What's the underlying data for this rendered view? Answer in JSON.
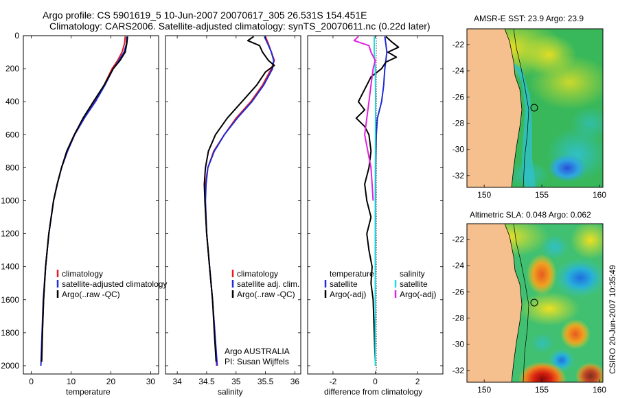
{
  "header": {
    "title_line1": "Argo profile: CS 5901619_5 10-Jun-2007 20070617_305 26.531S 154.451E",
    "title_line2": "Climatology: CARS2006. Satellite-adjusted climatology: synTS_20070611.nc (0.22d later)"
  },
  "credit": {
    "org_line1": "Argo AUSTRALIA",
    "org_line2": "PI: Susan Wijffels",
    "stamp": "CSIRO 20-Jun-2007 10:35:49"
  },
  "colors": {
    "climatology": "#e8191f",
    "satellite": "#1f2bd6",
    "argo": "#000000",
    "sat_salinity": "#22dddd",
    "argo_salinity": "#e020e0",
    "land": "#f5c08e"
  },
  "chart_data": [
    {
      "type": "line",
      "title": "",
      "xlabel": "temperature",
      "ylabel": "",
      "xlim": [
        -2,
        32
      ],
      "ylim": [
        2050,
        0
      ],
      "xticks": [
        0,
        10,
        20,
        30
      ],
      "yticks": [
        0,
        200,
        400,
        600,
        800,
        1000,
        1200,
        1400,
        1600,
        1800,
        2000
      ],
      "legend": [
        "climatology",
        "satellite-adjusted climatology",
        "Argo(..raw -QC)"
      ],
      "legend_position": "bottom-left",
      "series": [
        {
          "name": "climatology",
          "color": "#e8191f",
          "depth": [
            5,
            50,
            100,
            150,
            200,
            300,
            400,
            500,
            600,
            700,
            800,
            900,
            1000,
            1200,
            1400,
            1600,
            1800,
            1975
          ],
          "values": [
            23.6,
            23.4,
            22.8,
            21.7,
            20.3,
            18.3,
            15.9,
            13.3,
            10.9,
            9.1,
            7.6,
            6.5,
            5.6,
            4.4,
            3.6,
            3.1,
            2.8,
            2.6
          ]
        },
        {
          "name": "satellite-adjusted climatology",
          "color": "#1f2bd6",
          "depth": [
            5,
            50,
            100,
            150,
            200,
            300,
            400,
            500,
            600,
            700,
            800,
            900,
            1000,
            1200,
            1400,
            1600,
            1800,
            2000
          ],
          "values": [
            24.0,
            23.9,
            23.3,
            22.0,
            20.6,
            18.5,
            16.1,
            13.3,
            10.9,
            9.1,
            7.6,
            6.5,
            5.6,
            4.4,
            3.6,
            3.0,
            2.7,
            2.4
          ]
        },
        {
          "name": "Argo(..raw -QC)",
          "color": "#000000",
          "depth": [
            5,
            50,
            100,
            150,
            200,
            300,
            400,
            500,
            600,
            700,
            800,
            900,
            1000,
            1200,
            1400,
            1600,
            1800,
            1975
          ],
          "values": [
            24.2,
            24.0,
            23.6,
            22.3,
            20.6,
            18.3,
            15.6,
            13.0,
            10.8,
            8.9,
            7.6,
            6.5,
            5.6,
            4.4,
            3.6,
            3.1,
            2.8,
            2.6
          ]
        }
      ]
    },
    {
      "type": "line",
      "title": "",
      "xlabel": "salinity",
      "ylabel": "",
      "xlim": [
        33.8,
        36.1
      ],
      "ylim": [
        2050,
        0
      ],
      "xticks": [
        34,
        34.5,
        35,
        35.5,
        36
      ],
      "legend": [
        "climatology",
        "satellite adj. clim.",
        "Argo(..raw -QC)"
      ],
      "legend_position": "bottom-center",
      "series": [
        {
          "name": "climatology",
          "color": "#e8191f",
          "depth": [
            5,
            50,
            100,
            150,
            200,
            300,
            400,
            500,
            600,
            700,
            800,
            900,
            1000,
            1200,
            1400,
            1600,
            1800,
            2000
          ],
          "values": [
            35.5,
            35.55,
            35.6,
            35.65,
            35.6,
            35.45,
            35.25,
            35.0,
            34.8,
            34.62,
            34.52,
            34.48,
            34.47,
            34.5,
            34.55,
            34.6,
            34.64,
            34.67
          ]
        },
        {
          "name": "satellite adj. clim.",
          "color": "#1f2bd6",
          "depth": [
            5,
            50,
            100,
            150,
            200,
            300,
            400,
            500,
            600,
            700,
            800,
            900,
            1000,
            1200,
            1400,
            1600,
            1800,
            2000
          ],
          "values": [
            35.48,
            35.54,
            35.6,
            35.64,
            35.62,
            35.47,
            35.27,
            35.02,
            34.8,
            34.63,
            34.52,
            34.49,
            34.48,
            34.5,
            34.55,
            34.6,
            34.64,
            34.68
          ]
        },
        {
          "name": "Argo(..raw -QC)",
          "color": "#000000",
          "depth": [
            5,
            30,
            60,
            100,
            150,
            180,
            220,
            300,
            400,
            500,
            600,
            700,
            800,
            900,
            1000,
            1200,
            1400,
            1600,
            1800,
            1975
          ],
          "values": [
            35.3,
            35.2,
            35.4,
            35.45,
            35.55,
            35.65,
            35.5,
            35.35,
            35.1,
            34.85,
            34.65,
            34.53,
            34.48,
            34.46,
            34.47,
            34.5,
            34.55,
            34.6,
            34.63,
            34.66
          ]
        }
      ]
    },
    {
      "type": "line",
      "title": "",
      "xlabel": "difference from climatology",
      "ylabel": "",
      "xlim": [
        -3.2,
        3.2
      ],
      "ylim": [
        2050,
        0
      ],
      "xticks": [
        -2,
        0,
        2
      ],
      "legend": [
        "temperature",
        "satellite",
        "Argo(-adj)",
        "salinity",
        "satellite",
        "Argo(-adj)"
      ],
      "legend_position": "bottom",
      "series": [
        {
          "name": "satellite",
          "color": "#1f2bd6",
          "depth": [
            5,
            50,
            100,
            150,
            200,
            300,
            400,
            500,
            600,
            800,
            1000,
            1500,
            2000
          ],
          "values": [
            0.45,
            0.5,
            0.55,
            0.5,
            0.45,
            0.4,
            0.3,
            0.1,
            0.05,
            0.02,
            0.01,
            0.0,
            0.0
          ]
        },
        {
          "name": "Argo(-adj)",
          "color": "#000000",
          "depth": [
            5,
            40,
            70,
            100,
            130,
            160,
            200,
            250,
            300,
            350,
            400,
            450,
            500,
            550,
            600,
            700,
            800,
            900,
            1000,
            1100,
            1200,
            1300,
            1400,
            1500,
            1600,
            1800,
            1975
          ],
          "values": [
            0.5,
            0.8,
            1.1,
            0.6,
            1.0,
            0.5,
            0.3,
            -0.2,
            -0.4,
            -0.6,
            -0.8,
            -0.5,
            -0.9,
            -0.5,
            -0.3,
            -0.2,
            -0.3,
            -0.5,
            -0.4,
            -0.2,
            -0.4,
            -0.3,
            -0.15,
            -0.2,
            -0.1,
            -0.05,
            0.0
          ]
        },
        {
          "name": "satellite",
          "color": "#22dddd",
          "depth": [
            5,
            50,
            100,
            200,
            400,
            600,
            1000,
            1500,
            2000
          ],
          "values": [
            -0.05,
            -0.05,
            -0.05,
            0.0,
            0.02,
            0.01,
            0.0,
            0.0,
            0.0
          ]
        },
        {
          "name": "Argo(-adj)",
          "color": "#e020e0",
          "depth": [
            5,
            30,
            60,
            100,
            150,
            200,
            300,
            400,
            500,
            600,
            700,
            800,
            900,
            1000
          ],
          "values": [
            -0.8,
            -1.0,
            -0.3,
            -0.2,
            0.0,
            -0.1,
            -0.2,
            -0.3,
            -0.4,
            -0.5,
            -0.35,
            -0.2,
            -0.15,
            -0.1
          ]
        }
      ]
    },
    {
      "type": "heatmap",
      "title": "AMSR-E SST: 23.9 Argo: 23.9",
      "xlim": [
        148.5,
        160.3
      ],
      "ylim": [
        -32.9,
        -20.8
      ],
      "xticks": [
        150,
        155,
        160
      ],
      "yticks": [
        -22,
        -24,
        -26,
        -28,
        -30,
        -32
      ],
      "xticklabels": [
        "150",
        "155",
        "160"
      ],
      "yticklabels": [
        "-22",
        "-24",
        "-26",
        "-28",
        "-30",
        "-32"
      ],
      "marker": {
        "lon": 154.451,
        "lat": -26.531
      }
    },
    {
      "type": "heatmap",
      "title": "Altimetric SLA: 0.048 Argo: 0.062",
      "xlim": [
        148.5,
        160.3
      ],
      "ylim": [
        -32.9,
        -20.8
      ],
      "xticks": [
        150,
        155,
        160
      ],
      "yticks": [
        -22,
        -24,
        -26,
        -28,
        -30,
        -32
      ],
      "xticklabels": [
        "150",
        "155",
        "160"
      ],
      "yticklabels": [
        "-22",
        "-24",
        "-26",
        "-28",
        "-30",
        "-32"
      ],
      "marker": {
        "lon": 154.451,
        "lat": -26.531
      }
    }
  ]
}
